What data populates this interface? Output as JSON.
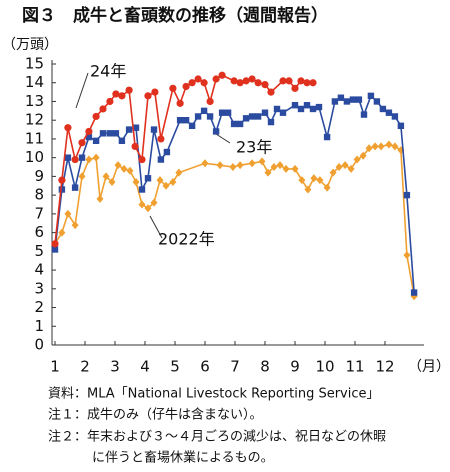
{
  "chart_data": {
    "type": "line",
    "title": "図３　成牛と畜頭数の推移（週間報告）",
    "y_label": "（万頭）",
    "x_label": "（月）",
    "xlim": [
      0.9,
      13.3
    ],
    "xticks": [
      1,
      2,
      3,
      4,
      5,
      6,
      7,
      8,
      9,
      10,
      11,
      12
    ],
    "ylim": [
      0,
      15
    ],
    "yticks": [
      0,
      1,
      2,
      3,
      4,
      5,
      6,
      7,
      8,
      9,
      10,
      11,
      12,
      13,
      14,
      15
    ],
    "grid": false,
    "series": [
      {
        "name": "2022年",
        "color": "#f0a030",
        "marker": "diamond",
        "x": [
          1,
          1.23,
          1.43,
          1.67,
          1.9,
          2.13,
          2.37,
          2.5,
          2.7,
          2.9,
          3.1,
          3.3,
          3.5,
          3.7,
          3.9,
          4.1,
          4.3,
          4.5,
          4.7,
          4.93,
          5.13,
          6.0,
          6.5,
          6.93,
          7.17,
          7.57,
          7.9,
          8.1,
          8.3,
          8.5,
          8.7,
          9.0,
          9.23,
          9.43,
          9.63,
          9.83,
          10.07,
          10.27,
          10.47,
          10.67,
          10.87,
          11.07,
          11.27,
          11.47,
          11.67,
          11.87,
          12.13,
          12.33,
          12.53,
          12.73,
          12.97
        ],
        "values": [
          5.4,
          6.0,
          7.0,
          6.4,
          9.0,
          9.9,
          10.0,
          7.8,
          9.0,
          8.7,
          9.6,
          9.4,
          9.3,
          8.7,
          7.5,
          7.3,
          7.6,
          8.8,
          8.5,
          8.7,
          9.2,
          9.7,
          9.6,
          9.5,
          9.6,
          9.7,
          9.8,
          9.2,
          9.5,
          9.6,
          9.4,
          9.4,
          8.8,
          8.3,
          8.9,
          8.8,
          8.4,
          9.2,
          9.5,
          9.6,
          9.4,
          9.9,
          10.1,
          10.5,
          10.6,
          10.6,
          10.7,
          10.6,
          10.4,
          4.8,
          2.6
        ]
      },
      {
        "name": "23年",
        "color": "#2b4ba0",
        "marker": "square",
        "x": [
          1,
          1.23,
          1.43,
          1.67,
          1.9,
          2.13,
          2.37,
          2.6,
          2.83,
          3.03,
          3.23,
          3.47,
          3.7,
          3.9,
          4.1,
          4.3,
          4.53,
          4.73,
          5.17,
          5.37,
          5.57,
          5.77,
          5.97,
          6.17,
          6.37,
          6.57,
          6.77,
          6.97,
          7.17,
          7.37,
          7.57,
          7.77,
          8.0,
          8.2,
          8.4,
          8.6,
          9.0,
          9.2,
          9.4,
          9.6,
          9.8,
          10.07,
          10.33,
          10.53,
          10.73,
          10.93,
          11.13,
          11.3,
          11.53,
          11.73,
          11.93,
          12.13,
          12.33,
          12.53,
          12.73,
          12.97
        ],
        "values": [
          5.1,
          8.3,
          10.0,
          8.4,
          10.0,
          11.1,
          10.9,
          11.3,
          11.3,
          11.3,
          10.9,
          11.5,
          11.6,
          8.3,
          8.9,
          11.5,
          9.9,
          10.3,
          12.0,
          12.0,
          11.7,
          12.2,
          12.5,
          12.2,
          11.4,
          12.4,
          12.4,
          11.8,
          11.8,
          12.1,
          12.2,
          12.2,
          12.4,
          11.9,
          12.6,
          12.4,
          12.8,
          12.6,
          12.8,
          12.6,
          12.7,
          11.1,
          13.0,
          13.2,
          13.0,
          13.1,
          13.1,
          12.3,
          13.3,
          13.0,
          12.6,
          12.4,
          12.2,
          11.7,
          8.0,
          2.8
        ]
      },
      {
        "name": "24年",
        "color": "#e0301e",
        "marker": "circle",
        "x": [
          1,
          1.23,
          1.43,
          1.67,
          1.9,
          2.13,
          2.37,
          2.6,
          2.83,
          3.03,
          3.23,
          3.47,
          3.67,
          3.9,
          4.1,
          4.33,
          4.53,
          4.93,
          5.17,
          5.37,
          5.57,
          5.77,
          5.97,
          6.17,
          6.37,
          6.57,
          6.97,
          7.17,
          7.37,
          7.57,
          7.77,
          8.0,
          8.2,
          8.6,
          8.8,
          9.0,
          9.2,
          9.4,
          9.6
        ],
        "values": [
          5.4,
          8.8,
          11.6,
          9.9,
          10.8,
          11.4,
          12.2,
          12.6,
          13.0,
          13.4,
          13.3,
          13.6,
          10.6,
          9.9,
          13.3,
          13.5,
          11.0,
          13.7,
          12.9,
          13.8,
          14.0,
          14.2,
          14.0,
          13.0,
          14.2,
          14.4,
          14.1,
          14.0,
          14.1,
          14.2,
          14.0,
          13.9,
          13.5,
          14.1,
          14.1,
          13.7,
          14.1,
          14.0,
          14.0
        ]
      }
    ]
  },
  "notes": [
    "資料：MLA「National Livestock Reporting Service」",
    "注１：成牛のみ（仔牛は含まない）。",
    "注２：年末および３～４月ごろの減少は、祝日などの休暇",
    "に伴うと畜場休業によるもの。"
  ]
}
